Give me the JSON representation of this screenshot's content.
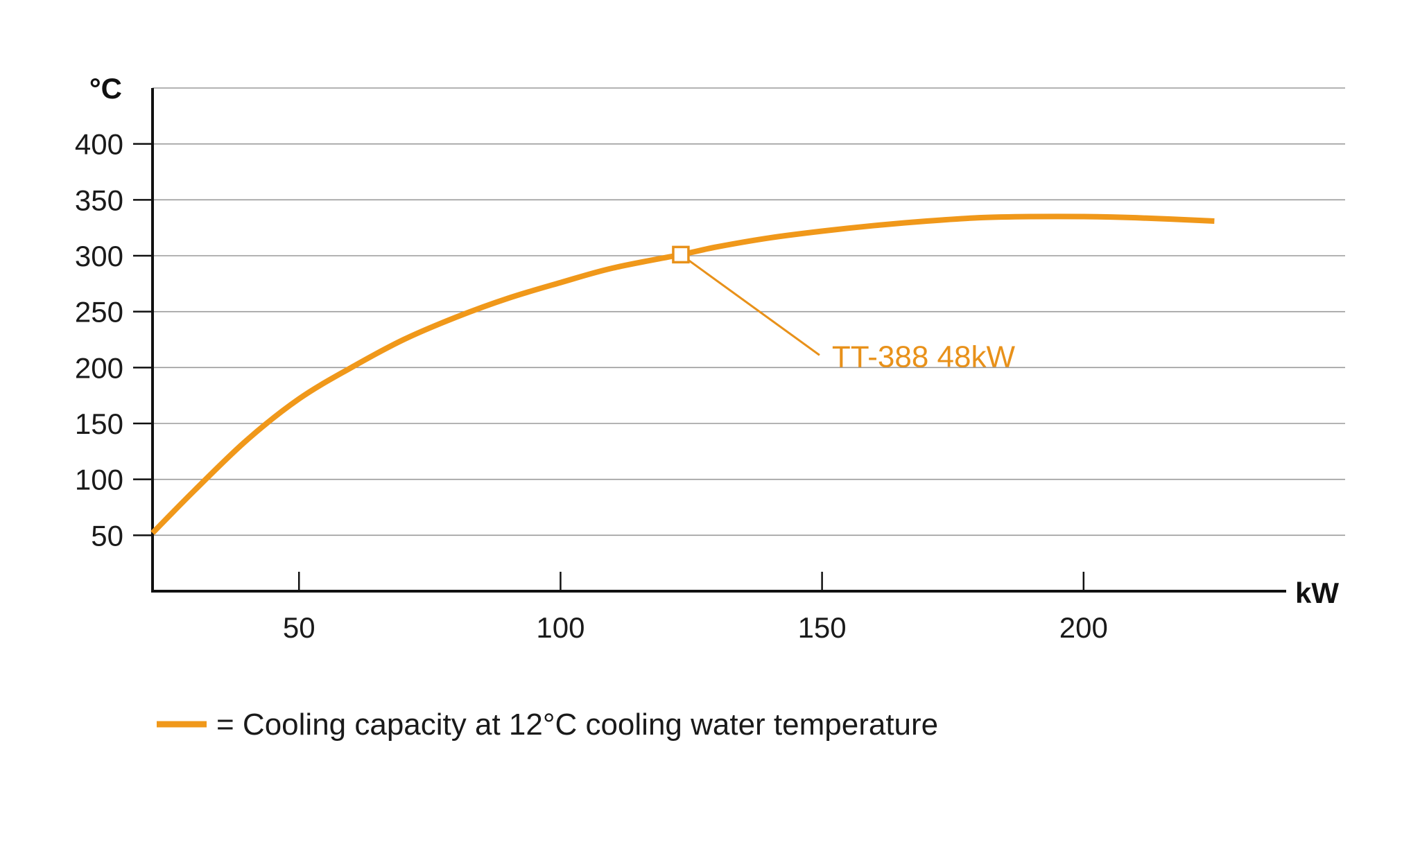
{
  "chart_data": {
    "type": "line",
    "xunit": "kW",
    "yunit": "°C",
    "xlim": [
      22,
      250
    ],
    "ylim": [
      0,
      450
    ],
    "xticks": [
      "50",
      "100",
      "150",
      "200"
    ],
    "yticks": [
      "50",
      "100",
      "150",
      "200",
      "250",
      "300",
      "350",
      "400"
    ],
    "grid": true,
    "series": [
      {
        "x": [
          22,
          30,
          40,
          50,
          60,
          70,
          80,
          90,
          100,
          110,
          123,
          130,
          140,
          150,
          160,
          170,
          180,
          190,
          200,
          210,
          225
        ],
        "values": [
          52,
          90,
          135,
          172,
          200,
          225,
          245,
          262,
          276,
          289,
          301,
          308,
          316,
          322,
          327,
          331,
          334,
          335,
          335,
          334,
          331
        ]
      }
    ],
    "annotations": [
      {
        "text": "TT-388 48kW",
        "x": 123,
        "y": 301
      }
    ],
    "legend": {
      "text": "= Cooling capacity at 12°C cooling water temperature",
      "position": "bottom-left"
    },
    "colors": {
      "series": "#F0981A",
      "annotation_text": "#E8911A",
      "grid": "#9a9a9a",
      "axis": "#111111"
    }
  }
}
